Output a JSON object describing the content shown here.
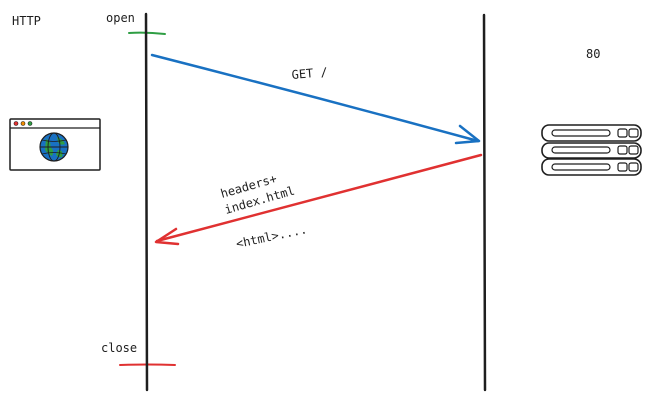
{
  "diagram": {
    "labels": {
      "protocol": "HTTP",
      "open": "open",
      "close": "close",
      "port": "80"
    },
    "request": {
      "label": "GET /"
    },
    "response": {
      "label_line1": "headers+",
      "label_line2": "index.html",
      "body": "<html>...."
    },
    "client_icon": "browser-globe-icon",
    "server_icon": "server-rack-icon"
  },
  "colors": {
    "request_arrow": "#1971c2",
    "response_arrow": "#e03131",
    "open_marker": "#2f9e44",
    "close_marker": "#e03131",
    "lifeline": "#1e1e1e",
    "globe": "#1971c2",
    "globe_land": "#2f9e44"
  }
}
